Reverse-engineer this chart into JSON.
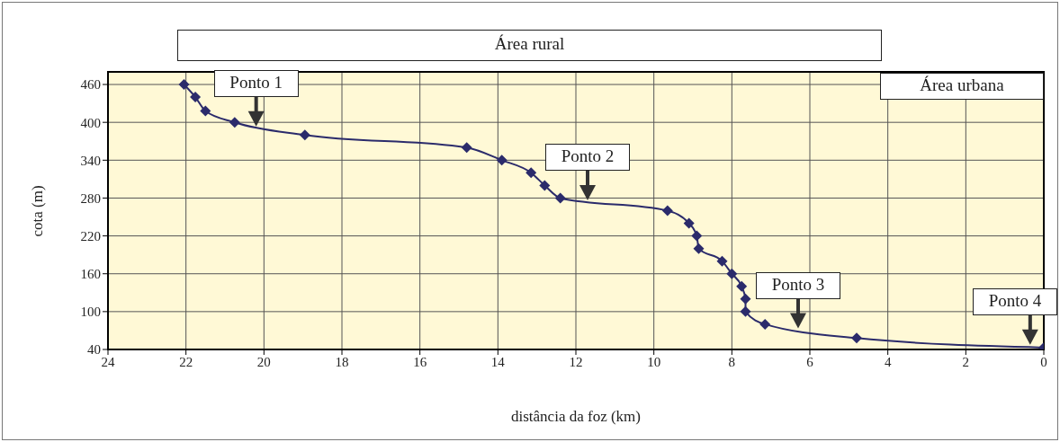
{
  "chart_data": {
    "type": "line",
    "xlabel": "distância da foz (km)",
    "ylabel": "cota (m)",
    "x": [
      22.05,
      21.76,
      21.5,
      20.75,
      18.95,
      14.8,
      13.9,
      13.15,
      12.8,
      12.4,
      9.65,
      9.1,
      8.9,
      8.85,
      8.25,
      8.0,
      7.75,
      7.65,
      7.65,
      7.15,
      4.8,
      0
    ],
    "series": [
      {
        "color": "#2b2b6b",
        "values": [
          460,
          440,
          418,
          400,
          380,
          360,
          340,
          320,
          300,
          280,
          260,
          240,
          220,
          200,
          180,
          160,
          140,
          120,
          100,
          80,
          58,
          43
        ]
      }
    ],
    "xlim": [
      24,
      0
    ],
    "xticks": [
      24,
      22,
      20,
      18,
      16,
      14,
      12,
      10,
      8,
      6,
      4,
      2,
      0
    ],
    "ylim": [
      40,
      480
    ],
    "yticks": [
      40,
      100,
      160,
      220,
      280,
      340,
      400,
      460
    ],
    "grid": true,
    "marker": "diamond",
    "line_style": "solid",
    "annotations": [
      "Área rural",
      "Área urbana",
      {
        "text": "Ponto 1",
        "x": 20.2,
        "y": 392
      },
      {
        "text": "Ponto 2",
        "x": 11.7,
        "y": 275
      },
      {
        "text": "Ponto 3",
        "x": 6.3,
        "y": 72
      },
      {
        "text": "Ponto 4",
        "x": 0.35,
        "y": 46
      }
    ]
  }
}
